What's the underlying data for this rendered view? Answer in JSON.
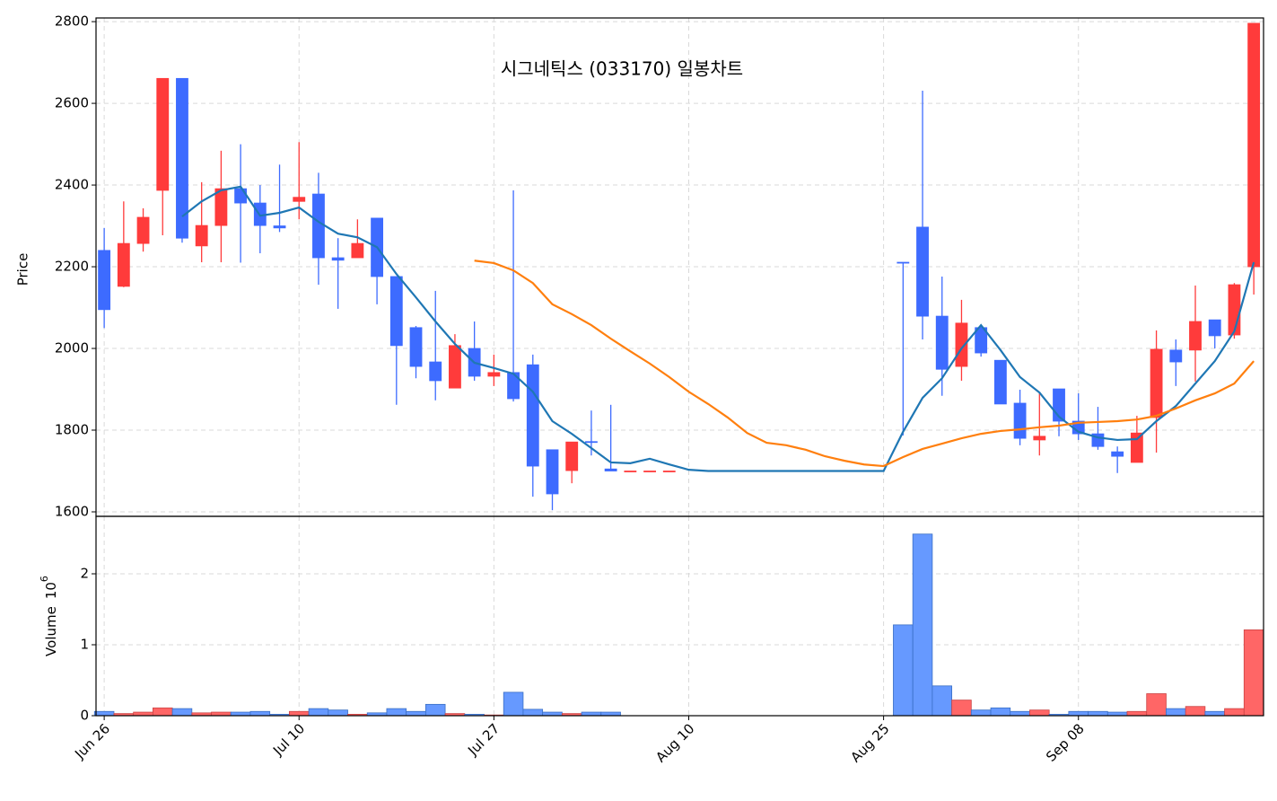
{
  "chart_data": {
    "type": "candlestick",
    "title": "시그네틱스 (033170) 일봉차트",
    "ylabel": "Price",
    "categories": [
      "Jun 26",
      null,
      null,
      null,
      null,
      null,
      null,
      null,
      null,
      null,
      "Jul 10",
      null,
      null,
      null,
      null,
      null,
      null,
      null,
      null,
      null,
      "Jul 27",
      null,
      null,
      null,
      null,
      null,
      null,
      null,
      null,
      null,
      "Aug 10",
      null,
      null,
      null,
      null,
      null,
      null,
      null,
      null,
      null,
      "Aug 25",
      null,
      null,
      null,
      null,
      null,
      null,
      null,
      null,
      null,
      "Sep 08",
      null,
      null,
      null,
      null,
      null,
      null,
      null,
      null,
      null
    ],
    "xlim": [
      -0.42,
      59.5
    ],
    "open": [
      2240,
      2152,
      2257,
      2387,
      2661,
      2251,
      2301,
      2391,
      2356,
      2300,
      2360,
      2378,
      2222,
      2222,
      2319,
      2176,
      2051,
      1967,
      1903,
      2000,
      1932,
      1941,
      1960,
      1752,
      1701,
      1772,
      1705,
      1700,
      1700,
      1700,
      null,
      null,
      null,
      null,
      null,
      null,
      null,
      null,
      null,
      null,
      null,
      2211,
      2297,
      2079,
      1956,
      2051,
      1971,
      1866,
      1776,
      1901,
      1822,
      1791,
      1747,
      1721,
      1831,
      1996,
      1996,
      2070,
      2033,
      2200
    ],
    "high": [
      2295,
      2360,
      2343,
      2661,
      2661,
      2407,
      2484,
      2500,
      2400,
      2450,
      2505,
      2430,
      2270,
      2316,
      2319,
      2176,
      2055,
      2141,
      2035,
      2066,
      1985,
      2387,
      1985,
      1752,
      1771,
      1848,
      1862,
      1700,
      1700,
      1700,
      null,
      null,
      null,
      null,
      null,
      null,
      null,
      null,
      null,
      null,
      null,
      2211,
      2631,
      2176,
      2119,
      2055,
      1971,
      1899,
      1890,
      1901,
      1890,
      1857,
      1760,
      1835,
      2044,
      2022,
      2154,
      2070,
      2160,
      2796
    ],
    "low": [
      2050,
      2150,
      2237,
      2277,
      2259,
      2211,
      2211,
      2210,
      2233,
      2285,
      2316,
      2156,
      2097,
      2222,
      2108,
      1862,
      1927,
      1873,
      1903,
      1921,
      1908,
      1870,
      1637,
      1604,
      1670,
      1738,
      1700,
      1700,
      1700,
      1700,
      null,
      null,
      null,
      null,
      null,
      null,
      null,
      null,
      null,
      null,
      null,
      1787,
      2022,
      1884,
      1921,
      1980,
      1864,
      1763,
      1738,
      1785,
      1776,
      1752,
      1695,
      1721,
      1745,
      1908,
      1919,
      2000,
      2024,
      2132
    ],
    "close": [
      2095,
      2257,
      2321,
      2661,
      2270,
      2301,
      2391,
      2356,
      2301,
      2295,
      2370,
      2222,
      2216,
      2257,
      2176,
      2007,
      1956,
      1921,
      2007,
      1932,
      1941,
      1877,
      1712,
      1644,
      1771,
      1770,
      1700,
      1700,
      1700,
      1700,
      null,
      null,
      null,
      null,
      null,
      null,
      null,
      null,
      null,
      null,
      null,
      2209,
      2079,
      1949,
      2062,
      1989,
      1864,
      1780,
      1785,
      1822,
      1791,
      1760,
      1736,
      1793,
      1998,
      1967,
      2066,
      2031,
      2156,
      2796
    ],
    "up_color": "#ff3b3b",
    "down_color": "#3d6bff",
    "lines": [
      {
        "color": "#1f77b4",
        "values": [
          null,
          null,
          null,
          null,
          2323,
          2360,
          2387,
          2396,
          2325,
          2332,
          2345,
          2310,
          2281,
          2272,
          2248,
          2182,
          2125,
          2066,
          2011,
          1965,
          1952,
          1938,
          1894,
          1822,
          1791,
          1756,
          1721,
          1719,
          1730,
          1716,
          1703,
          1700,
          1700,
          1700,
          1700,
          1700,
          1700,
          1700,
          1700,
          1700,
          1700,
          1796,
          1879,
          1927,
          2000,
          2057,
          1996,
          1930,
          1892,
          1833,
          1796,
          1782,
          1776,
          1778,
          1822,
          1859,
          1914,
          1969,
          2042,
          2211
        ]
      },
      {
        "color": "#ff7f0e",
        "values": [
          null,
          null,
          null,
          null,
          null,
          null,
          null,
          null,
          null,
          null,
          null,
          null,
          null,
          null,
          null,
          null,
          null,
          null,
          null,
          2215,
          2209,
          2191,
          2160,
          2108,
          2084,
          2057,
          2024,
          1993,
          1963,
          1930,
          1894,
          1864,
          1831,
          1793,
          1769,
          1763,
          1752,
          1736,
          1725,
          1716,
          1712,
          1734,
          1754,
          1767,
          1780,
          1791,
          1798,
          1802,
          1807,
          1811,
          1818,
          1820,
          1822,
          1826,
          1835,
          1853,
          1873,
          1890,
          1914,
          1969
        ]
      }
    ],
    "ylim": [
      1589,
      2809
    ],
    "yticks": [
      1600,
      1800,
      2000,
      2200,
      2400,
      2600,
      2800
    ],
    "grid": true,
    "volume": {
      "ylabel": "Volume",
      "offset_text": {
        "base": "10",
        "exponent": "6"
      },
      "values": [
        0.06,
        0.03,
        0.05,
        0.11,
        0.1,
        0.04,
        0.05,
        0.05,
        0.06,
        0.02,
        0.06,
        0.1,
        0.08,
        0.02,
        0.04,
        0.1,
        0.06,
        0.16,
        0.03,
        0.02,
        0.01,
        0.33,
        0.09,
        0.05,
        0.03,
        0.05,
        0.05,
        null,
        null,
        null,
        null,
        null,
        null,
        null,
        null,
        null,
        null,
        null,
        null,
        null,
        null,
        1.28,
        2.56,
        0.42,
        0.22,
        0.08,
        0.11,
        0.06,
        0.08,
        0.02,
        0.06,
        0.06,
        0.05,
        0.06,
        0.31,
        0.1,
        0.13,
        0.06,
        0.1,
        1.21
      ],
      "up_color": "#ff6666",
      "down_color": "#6699ff",
      "ylim": [
        0,
        2.81
      ],
      "yticks": [
        0,
        1,
        2
      ]
    }
  }
}
